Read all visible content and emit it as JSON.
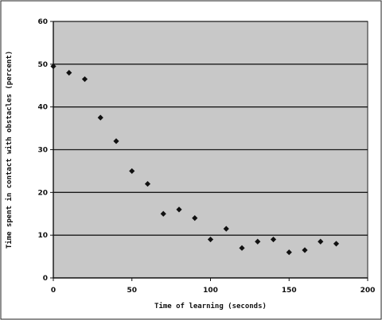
{
  "chart_data": {
    "type": "scatter",
    "title": "",
    "xlabel": "Time of learning (seconds)",
    "ylabel": "Time spent in contact with obstacles (percent)",
    "xlim": [
      0,
      200
    ],
    "ylim": [
      0,
      60
    ],
    "x_ticks": [
      0,
      50,
      100,
      150,
      200
    ],
    "y_ticks": [
      0,
      10,
      20,
      30,
      40,
      50,
      60
    ],
    "grid": "horizontal",
    "legend": "none",
    "plot_background": "#c8c8c8",
    "grid_color": "#1a1a1a",
    "marker_color": "#111111",
    "marker": "diamond",
    "series": [
      {
        "x": [
          0,
          10,
          20,
          30,
          40,
          50,
          60,
          70,
          80,
          90,
          100,
          110,
          120,
          130,
          140,
          150,
          160,
          170,
          180
        ],
        "y": [
          49.5,
          48,
          46.5,
          37.5,
          32,
          25,
          22,
          15,
          16,
          14,
          9,
          11.5,
          7,
          8.5,
          9,
          6,
          6.5,
          8.5,
          8
        ]
      }
    ]
  }
}
